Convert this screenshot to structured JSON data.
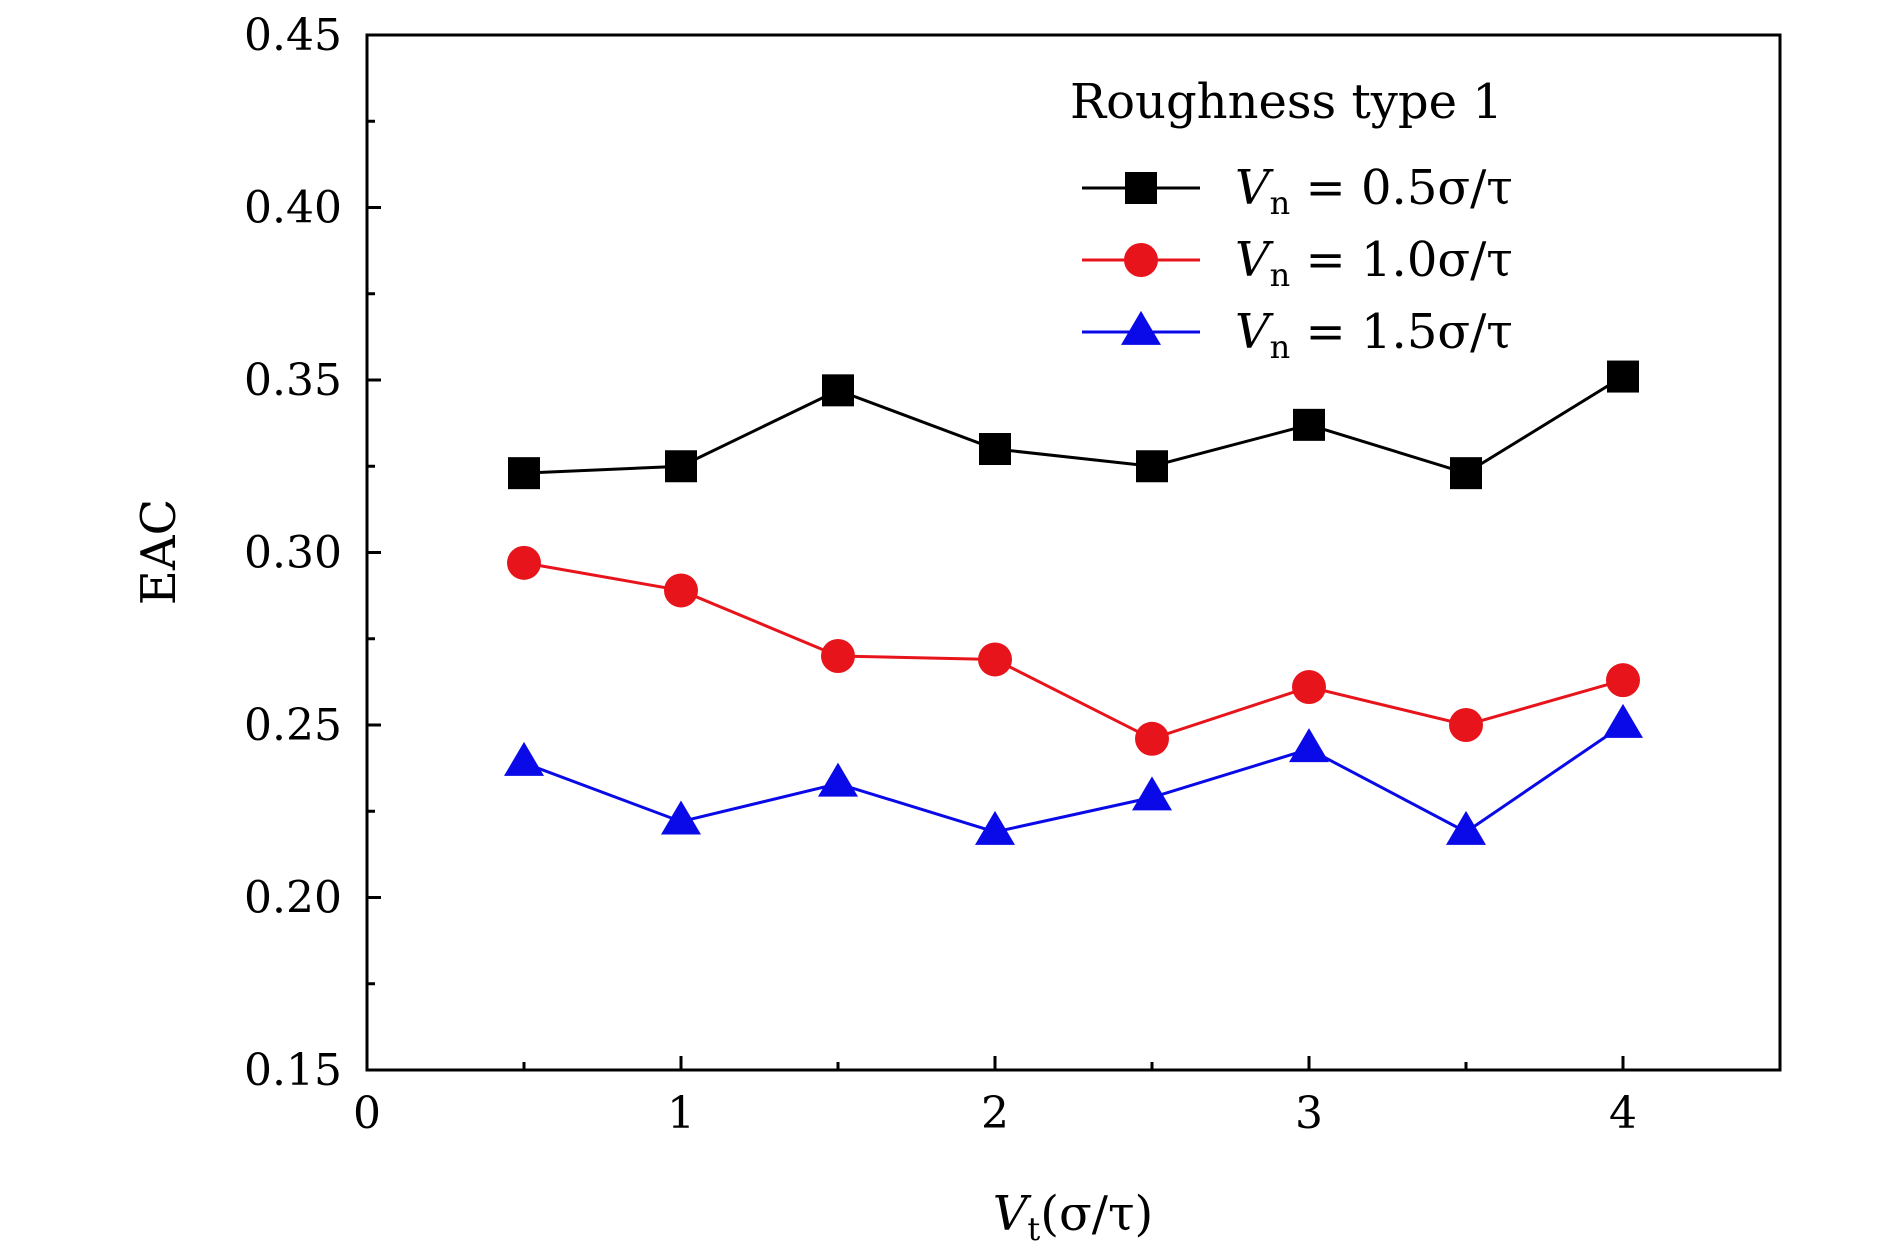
{
  "chart_data": {
    "type": "line",
    "title": "",
    "xlabel": {
      "main": "V",
      "sub": "t",
      "rest": "(σ/τ)"
    },
    "ylabel": "EAC",
    "xlim": [
      0,
      4.5
    ],
    "ylim": [
      0.15,
      0.45
    ],
    "x_ticks": [
      0,
      1,
      2,
      3,
      4
    ],
    "x_tick_labels": [
      "0",
      "1",
      "2",
      "3",
      "4"
    ],
    "x_minor_ticks": [
      0.5,
      1.5,
      2.5,
      3.5
    ],
    "y_ticks": [
      0.15,
      0.2,
      0.25,
      0.3,
      0.35,
      0.4,
      0.45
    ],
    "y_tick_labels": [
      "0.15",
      "0.20",
      "0.25",
      "0.30",
      "0.35",
      "0.40",
      "0.45"
    ],
    "y_minor_ticks": [
      0.175,
      0.225,
      0.275,
      0.325,
      0.375,
      0.425
    ],
    "grid": false,
    "legend": {
      "title": "Roughness type 1",
      "placement": "top-right"
    },
    "x": [
      0.5,
      1.0,
      1.5,
      2.0,
      2.5,
      3.0,
      3.5,
      4.0
    ],
    "series": [
      {
        "name": {
          "main": "V",
          "sub": "n",
          "rest": " = 0.5σ/τ"
        },
        "color": "#000000",
        "marker": "square",
        "values": [
          0.323,
          0.325,
          0.347,
          0.33,
          0.325,
          0.337,
          0.323,
          0.351
        ]
      },
      {
        "name": {
          "main": "V",
          "sub": "n",
          "rest": " = 1.0σ/τ"
        },
        "color": "#e8141c",
        "marker": "circle",
        "values": [
          0.297,
          0.289,
          0.27,
          0.269,
          0.246,
          0.261,
          0.25,
          0.263
        ]
      },
      {
        "name": {
          "main": "V",
          "sub": "n",
          "rest": " = 1.5σ/τ"
        },
        "color": "#0a0ae8",
        "marker": "triangle",
        "values": [
          0.239,
          0.222,
          0.233,
          0.219,
          0.229,
          0.243,
          0.219,
          0.25
        ]
      }
    ]
  }
}
